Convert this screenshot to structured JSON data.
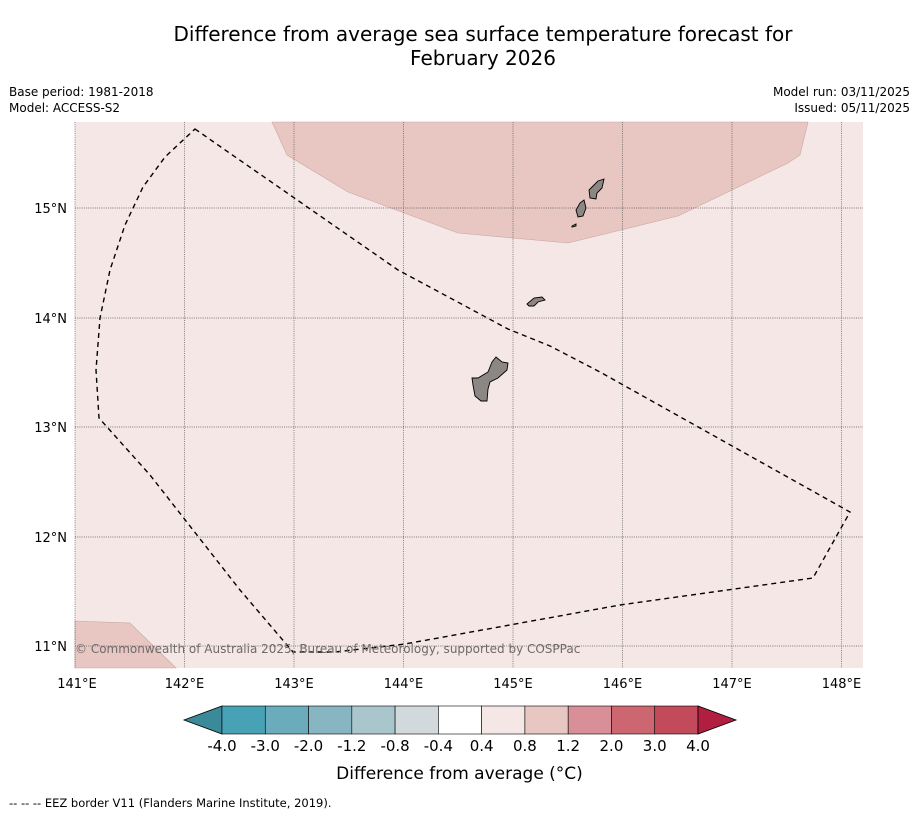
{
  "title_line1": "Difference from average sea surface temperature forecast for",
  "title_line2": "February 2026",
  "base_period": "Base period: 1981-2018",
  "model": "Model: ACCESS-S2",
  "model_run": "Model run: 03/11/2025",
  "issued": "Issued: 05/11/2025",
  "copyright": "© Commonwealth of Australia 2025, Bureau of Meteorology, supported by COSPPac",
  "lon_labels": [
    "141°E",
    "142°E",
    "143°E",
    "144°E",
    "145°E",
    "146°E",
    "147°E",
    "148°E"
  ],
  "lat_labels": [
    "15°N",
    "14°N",
    "13°N",
    "12°N",
    "11°N"
  ],
  "colorbar": {
    "ticks": [
      "-4.0",
      "-3.0",
      "-2.0",
      "-1.2",
      "-0.8",
      "-0.4",
      "0.4",
      "0.8",
      "1.2",
      "2.0",
      "3.0",
      "4.0"
    ],
    "colors": [
      "#46a2b4",
      "#6aacbc",
      "#88b5c2",
      "#a8c6cc",
      "#d2d9dc",
      "#ffffff",
      "#f5e7e6",
      "#e8c6c2",
      "#d98f98",
      "#cc6670",
      "#c24a5a"
    ],
    "under_color": "#3a8a99",
    "over_color": "#b01e40",
    "label": "Difference from average (°C)"
  },
  "field_colors": {
    "base": "#f5e7e6",
    "warm": "#e8c6c2",
    "land": "#8c8785"
  },
  "footnote": "-- -- -- EEZ border V11 (Flanders Marine Institute, 2019)."
}
